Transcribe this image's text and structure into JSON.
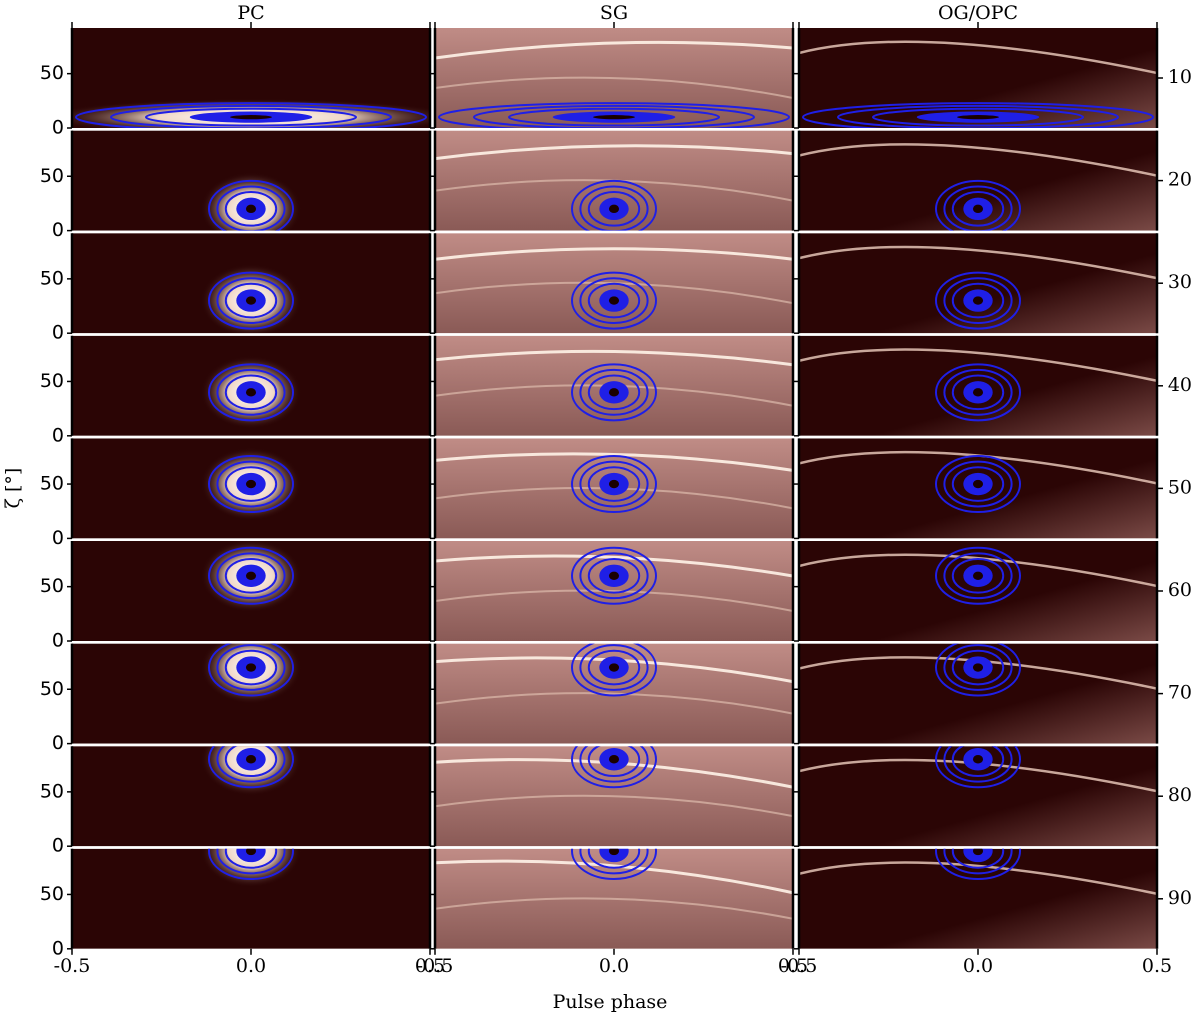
{
  "chart_data": {
    "type": "image-grid",
    "columns": [
      "PC",
      "SG",
      "OG/OPC"
    ],
    "rows": [
      10,
      20,
      30,
      40,
      50,
      60,
      70,
      80,
      90
    ],
    "xlabel": "Pulse phase",
    "ylabel": "ζ [°]",
    "xlim": [
      -0.5,
      0.5
    ],
    "xticks": [
      -0.5,
      {
        "value": 0,
        "label": "0.0"
      },
      0.5
    ],
    "ylim": [
      0,
      92
    ],
    "yticks": [
      0,
      50
    ],
    "contour_color": "#1f1fe6"
  }
}
